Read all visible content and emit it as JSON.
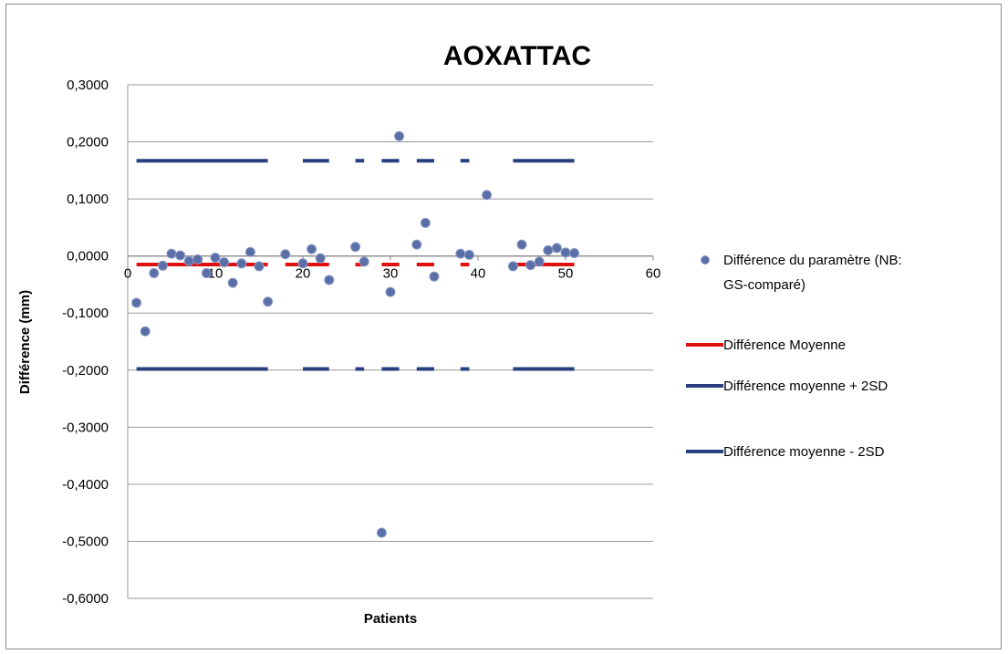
{
  "chart_data": {
    "type": "scatter",
    "title": "AOXATTAC",
    "xlabel": "Patients",
    "ylabel": "Différence (mm)",
    "xlim": [
      0,
      60
    ],
    "ylim": [
      -0.6,
      0.3
    ],
    "x_ticks": [
      0,
      10,
      20,
      30,
      40,
      50,
      60
    ],
    "x_tick_labels": [
      "0",
      "10",
      "20",
      "30",
      "40",
      "50",
      "60"
    ],
    "y_ticks": [
      0.3,
      0.2,
      0.1,
      0,
      -0.1,
      -0.2,
      -0.3,
      -0.4,
      -0.5,
      -0.6
    ],
    "y_tick_labels": [
      "0,3000",
      "0,2000",
      "0,1000",
      "0,0000",
      "-0,1000",
      "-0,2000",
      "-0,3000",
      "-0,4000",
      "-0,5000",
      "-0,6000"
    ],
    "grid": "horizontal",
    "legend_position": "right",
    "series": [
      {
        "name": "Différence du paramètre (NB: GS-comparé)",
        "style": "marker",
        "color": "#5a6ea8",
        "points": [
          [
            1,
            -0.082
          ],
          [
            2,
            -0.132
          ],
          [
            3,
            -0.03
          ],
          [
            4,
            -0.017
          ],
          [
            5,
            0.004
          ],
          [
            6,
            0.001
          ],
          [
            7,
            -0.009
          ],
          [
            8,
            -0.006
          ],
          [
            9,
            -0.03
          ],
          [
            10,
            -0.003
          ],
          [
            11,
            -0.011
          ],
          [
            12,
            -0.047
          ],
          [
            13,
            -0.013
          ],
          [
            14,
            0.007
          ],
          [
            15,
            -0.018
          ],
          [
            16,
            -0.08
          ],
          [
            18,
            0.003
          ],
          [
            20,
            -0.013
          ],
          [
            21,
            0.012
          ],
          [
            22,
            -0.004
          ],
          [
            23,
            -0.042
          ],
          [
            26,
            0.016
          ],
          [
            27,
            -0.01
          ],
          [
            29,
            -0.485
          ],
          [
            30,
            -0.063
          ],
          [
            31,
            0.21
          ],
          [
            33,
            0.02
          ],
          [
            34,
            0.058
          ],
          [
            35,
            -0.036
          ],
          [
            38,
            0.004
          ],
          [
            39,
            0.002
          ],
          [
            41,
            0.107
          ],
          [
            44,
            -0.018
          ],
          [
            45,
            0.02
          ],
          [
            46,
            -0.016
          ],
          [
            47,
            -0.01
          ],
          [
            48,
            0.01
          ],
          [
            49,
            0.014
          ],
          [
            50,
            0.006
          ],
          [
            51,
            0.005
          ]
        ]
      },
      {
        "name": "Différence Moyenne",
        "style": "line",
        "color": "#e01010",
        "y": -0.015,
        "segments": [
          [
            1,
            16
          ],
          [
            18,
            23
          ],
          [
            26,
            27
          ],
          [
            29,
            31
          ],
          [
            33,
            35
          ],
          [
            38,
            39
          ],
          [
            44,
            51
          ]
        ]
      },
      {
        "name": "Différence moyenne + 2SD",
        "style": "line",
        "color": "#2a3f7e",
        "y": 0.167,
        "segments": [
          [
            1,
            16
          ],
          [
            20,
            23
          ],
          [
            26,
            27
          ],
          [
            29,
            31
          ],
          [
            33,
            35
          ],
          [
            38,
            39
          ],
          [
            44,
            51
          ]
        ]
      },
      {
        "name": "Différence moyenne - 2SD",
        "style": "line",
        "color": "#2a3f7e",
        "y": -0.198,
        "segments": [
          [
            1,
            16
          ],
          [
            20,
            23
          ],
          [
            26,
            27
          ],
          [
            29,
            31
          ],
          [
            33,
            35
          ],
          [
            38,
            39
          ],
          [
            44,
            51
          ]
        ]
      }
    ]
  }
}
